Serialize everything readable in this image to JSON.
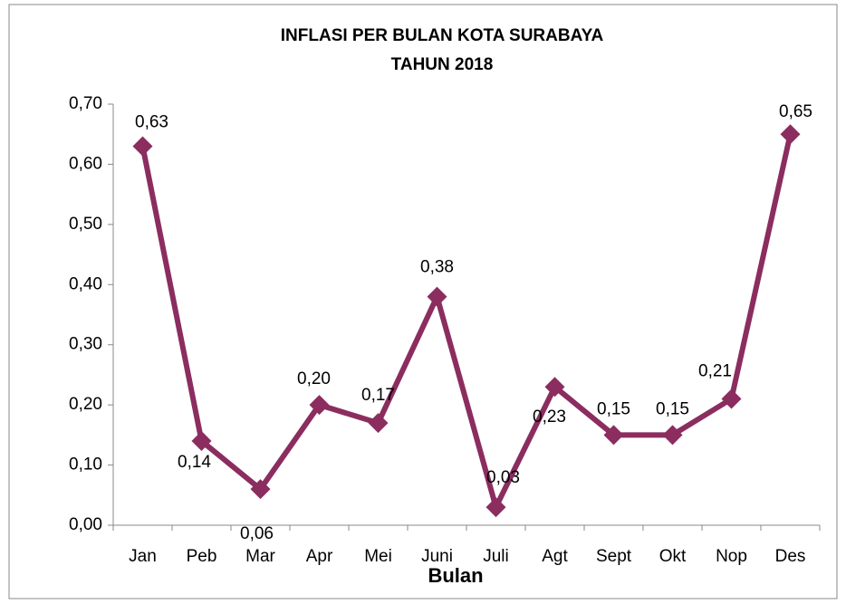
{
  "chart_data": {
    "type": "line",
    "title": "INFLASI PER BULAN KOTA SURABAYA",
    "subtitle": "TAHUN 2018",
    "x_label": "Bulan",
    "categories": [
      "Jan",
      "Peb",
      "Mar",
      "Apr",
      "Mei",
      "Juni",
      "Juli",
      "Agt",
      "Sept",
      "Okt",
      "Nop",
      "Des"
    ],
    "series": [
      {
        "name": "Inflasi",
        "color": "#8b2d5f",
        "values": [
          0.63,
          0.14,
          0.06,
          0.2,
          0.17,
          0.38,
          0.03,
          0.23,
          0.15,
          0.15,
          0.21,
          0.65
        ],
        "value_labels": [
          "0,63",
          "0,14",
          "0,06",
          "0,20",
          "0,17",
          "0,38",
          "0,03",
          "0,23",
          "0,15",
          "0,15",
          "0,21",
          "0,65"
        ]
      }
    ],
    "ylim": [
      0,
      0.7
    ],
    "yticks": [
      {
        "value": 0,
        "label": "0,00"
      },
      {
        "value": 0.1,
        "label": "0,10"
      },
      {
        "value": 0.2,
        "label": "0,20"
      },
      {
        "value": 0.3,
        "label": "0,30"
      },
      {
        "value": 0.4,
        "label": "0,40"
      },
      {
        "value": 0.5,
        "label": "0,50"
      },
      {
        "value": 0.6,
        "label": "0,60"
      },
      {
        "value": 0.7,
        "label": "0,70"
      }
    ],
    "grid": false,
    "legend": false
  }
}
